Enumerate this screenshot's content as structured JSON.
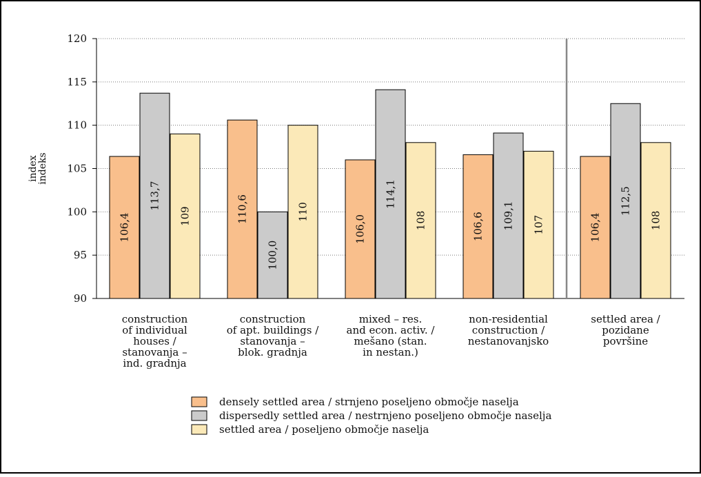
{
  "chart_data": {
    "type": "bar",
    "ylabel_lines": [
      "index",
      "indeks"
    ],
    "ylim": [
      90,
      120
    ],
    "yticks": [
      90,
      95,
      100,
      105,
      110,
      115,
      120
    ],
    "grid": true,
    "legend_position": "bottom-center",
    "categories": [
      {
        "lines": [
          "construction",
          "of individual",
          "houses /",
          "stanovanja –",
          "ind. gradnja"
        ]
      },
      {
        "lines": [
          "construction",
          "of apt. buildings /",
          "stanovanja –",
          "blok. gradnja"
        ]
      },
      {
        "lines": [
          "mixed – res.",
          "and econ. activ. /",
          "mešano (stan.",
          "in nestan.)"
        ]
      },
      {
        "lines": [
          "non-residential",
          "construction /",
          "nestanovanjsko"
        ]
      },
      {
        "lines": [
          "settled area /",
          "pozidane",
          "površine"
        ]
      }
    ],
    "series": [
      {
        "name": "densely settled area / strnjeno poseljeno območje naselja",
        "color": "#f9bf8c",
        "values": [
          106.4,
          110.6,
          106.0,
          106.6,
          106.4
        ],
        "labels": [
          "106,4",
          "110,6",
          "106,0",
          "106,6",
          "106,4"
        ]
      },
      {
        "name": "dispersedly settled area / nestrnjeno poseljeno območje naselja",
        "color": "#cbcbcb",
        "values": [
          113.7,
          100.0,
          114.1,
          109.1,
          112.5
        ],
        "labels": [
          "113,7",
          "100,0",
          "114,1",
          "109,1",
          "112,5"
        ]
      },
      {
        "name": "settled area  / poseljeno območje naselja",
        "color": "#fbe9b8",
        "values": [
          109,
          110,
          108,
          107,
          108
        ],
        "labels": [
          "109",
          "110",
          "108",
          "107",
          "108"
        ]
      }
    ]
  }
}
